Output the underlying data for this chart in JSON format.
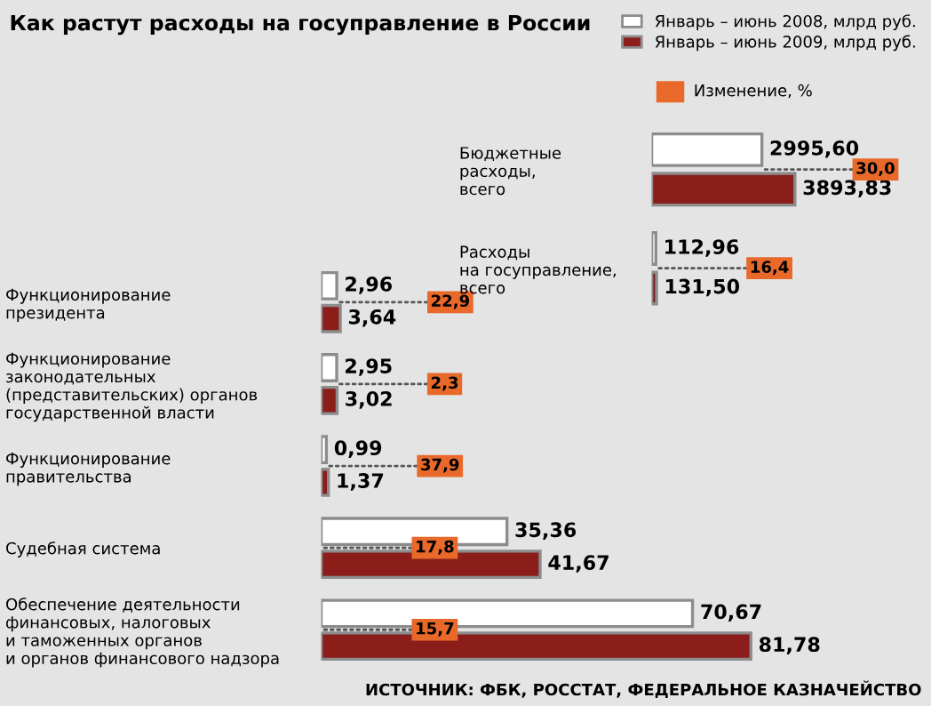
{
  "chart_data": [
    {
      "type": "bar",
      "orientation": "horizontal",
      "title": "Как растут расходы на госуправление в России",
      "legend": "top right",
      "categories": [
        "Функционирование\nпрезидента",
        "Функционирование\nзаконодательных\n(представительских) органов\nгосударственной власти",
        "Функционирование\nправительства",
        "Судебная система",
        "Обеспечение деятельности\nфинансовых, налоговых\nи таможенных органов\nи органов финансового надзора"
      ],
      "series": [
        {
          "name": "Январь – июнь 2008, млрд руб.",
          "color": "#ffffff",
          "values": [
            2.96,
            2.95,
            0.99,
            35.36,
            70.67
          ],
          "value_labels": [
            "2,96",
            "2,95",
            "0,99",
            "35,36",
            "70,67"
          ]
        },
        {
          "name": "Январь – июнь 2009, млрд руб.",
          "color": "#8b1e1a",
          "values": [
            3.64,
            3.02,
            1.37,
            41.67,
            81.78
          ],
          "value_labels": [
            "3,64",
            "3,02",
            "1,37",
            "41,67",
            "81,78"
          ]
        }
      ],
      "annotations": [
        "Изменение, %",
        "ИСТОЧНИК: ФБК, РОССТАТ, ФЕДЕРАЛЬНОЕ КАЗНАЧЕЙСТВО",
        {
          "text": "22,9",
          "x": 2.96,
          "y": "Функционирование\nпрезидента"
        },
        {
          "text": "2,3",
          "x": 2.95,
          "y": "Функционирование\nзаконодательных\n(представительских) органов\nгосударственной власти"
        },
        {
          "text": "37,9",
          "x": 0.99,
          "y": "Функционирование\nправительства"
        },
        {
          "text": "17,8",
          "x": 0,
          "y": "Судебная система"
        },
        {
          "text": "15,7",
          "x": 0,
          "y": "Обеспечение деятельности\nфинансовых, налоговых\nи таможенных органов\nи органов финансового надзора"
        }
      ]
    },
    {
      "type": "bar",
      "orientation": "horizontal",
      "categories": [
        "Бюджетные\nрасходы,\nвсего",
        "Расходы\nна госуправление,\nвсего"
      ],
      "series": [
        {
          "color": "#ffffff",
          "values": [
            2995.6,
            112.96
          ],
          "value_labels": [
            "2995,60",
            "112,96"
          ]
        },
        {
          "color": "#8b1e1a",
          "values": [
            3893.83,
            131.5
          ],
          "value_labels": [
            "3893,83",
            "131,50"
          ]
        }
      ],
      "annotations": [
        {
          "text": "30,0",
          "x": 2995.6,
          "y": "Бюджетные\nрасходы,\nвсего"
        },
        {
          "text": "16,4",
          "x": 112.96,
          "y": "Расходы\nна госуправление,\nвсего"
        }
      ]
    }
  ]
}
